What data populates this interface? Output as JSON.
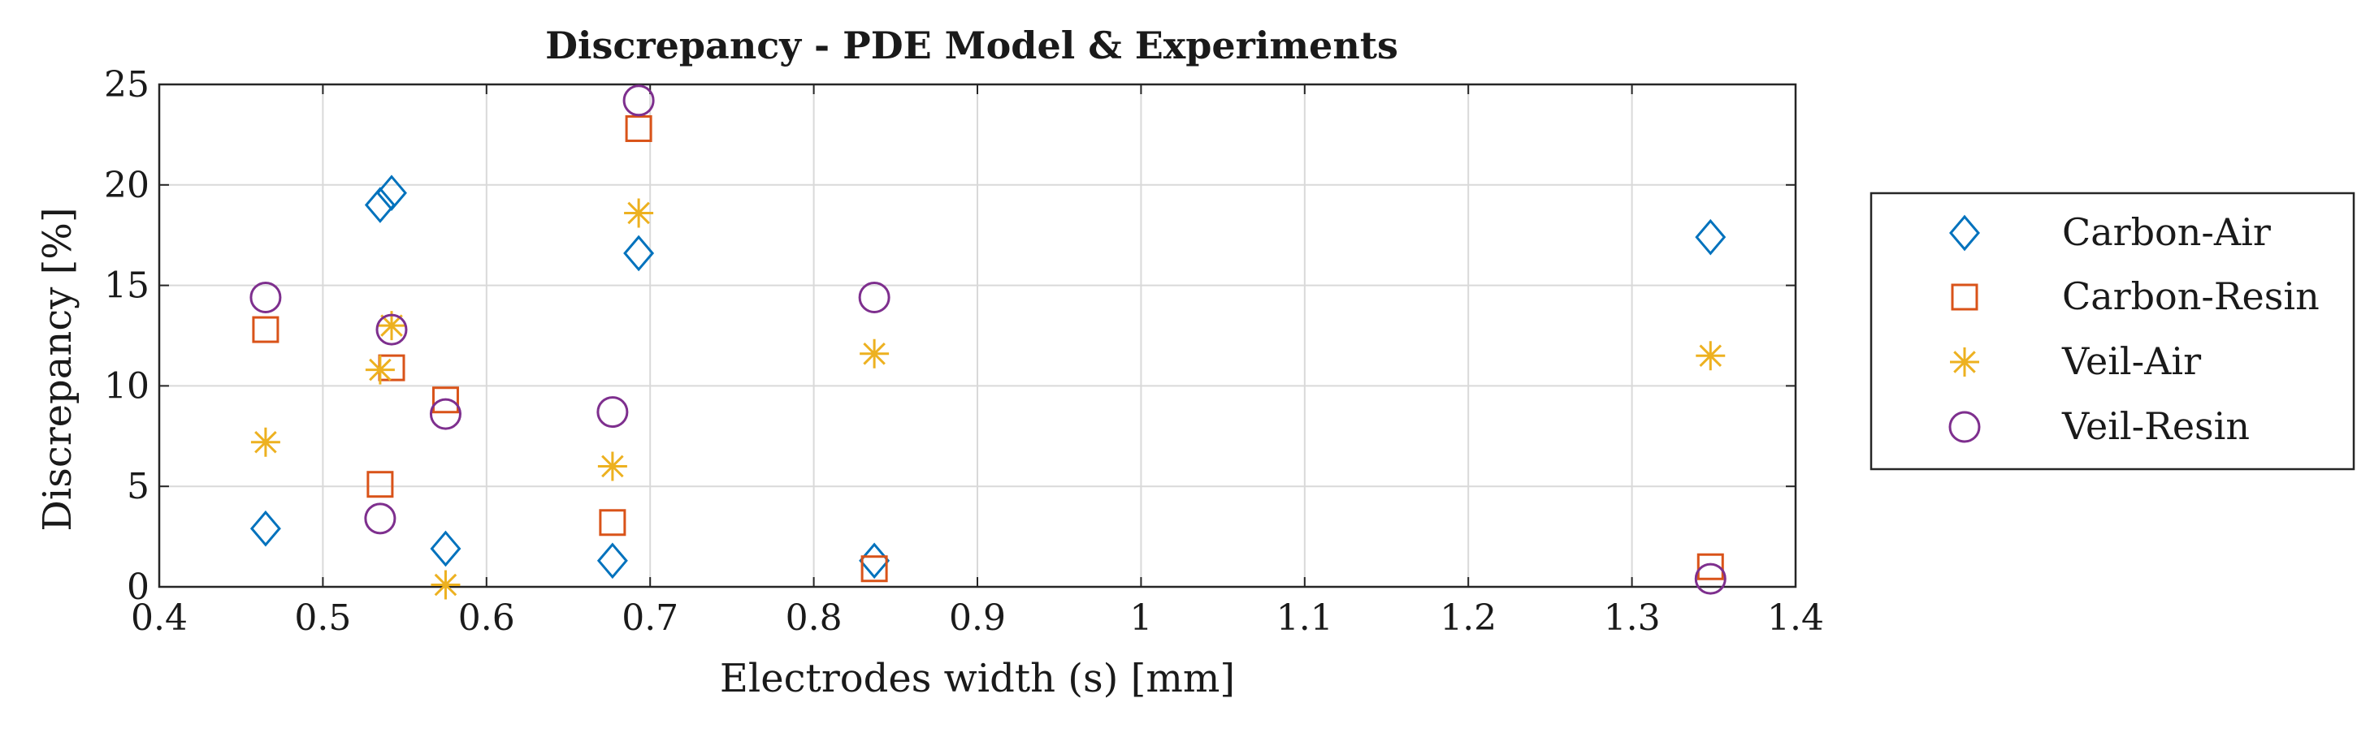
{
  "chart_data": {
    "type": "scatter",
    "title": "Discrepancy - PDE Model & Experiments",
    "xlabel": "Electrodes width (s) [mm]",
    "ylabel": "Discrepancy [%]",
    "xlim": [
      0.4,
      1.4
    ],
    "ylim": [
      0,
      25
    ],
    "xticks": [
      0.4,
      0.5,
      0.6,
      0.7,
      0.8,
      0.9,
      1,
      1.1,
      1.2,
      1.3,
      1.4
    ],
    "xtick_labels": [
      "0.4",
      "0.5",
      "0.6",
      "0.7",
      "0.8",
      "0.9",
      "1",
      "1.1",
      "1.2",
      "1.3",
      "1.4"
    ],
    "yticks": [
      0,
      5,
      10,
      15,
      20,
      25
    ],
    "ytick_labels": [
      "0",
      "5",
      "10",
      "15",
      "20",
      "25"
    ],
    "grid": true,
    "legend_position": "outside-right",
    "series": [
      {
        "name": "Carbon-Air",
        "marker": "diamond",
        "color": "#0072BD",
        "x": [
          0.465,
          0.535,
          0.542,
          0.575,
          0.677,
          0.693,
          0.837,
          1.348
        ],
        "y": [
          2.9,
          19.0,
          19.6,
          1.9,
          1.3,
          16.6,
          1.3,
          17.4
        ]
      },
      {
        "name": "Carbon-Resin",
        "marker": "square",
        "color": "#D95319",
        "x": [
          0.465,
          0.535,
          0.542,
          0.575,
          0.677,
          0.693,
          0.837,
          1.348
        ],
        "y": [
          12.8,
          5.1,
          10.9,
          9.3,
          3.2,
          22.8,
          0.9,
          1.0
        ]
      },
      {
        "name": "Veil-Air",
        "marker": "asterisk",
        "color": "#EDB120",
        "x": [
          0.465,
          0.535,
          0.542,
          0.575,
          0.677,
          0.693,
          0.837,
          1.348
        ],
        "y": [
          7.2,
          10.8,
          13.0,
          0.1,
          6.0,
          18.6,
          11.6,
          11.5
        ]
      },
      {
        "name": "Veil-Resin",
        "marker": "circle",
        "color": "#7E2F8E",
        "x": [
          0.465,
          0.535,
          0.542,
          0.575,
          0.677,
          0.693,
          0.837,
          1.348
        ],
        "y": [
          14.4,
          3.4,
          12.8,
          8.6,
          8.7,
          24.2,
          14.4,
          0.4
        ]
      }
    ]
  }
}
